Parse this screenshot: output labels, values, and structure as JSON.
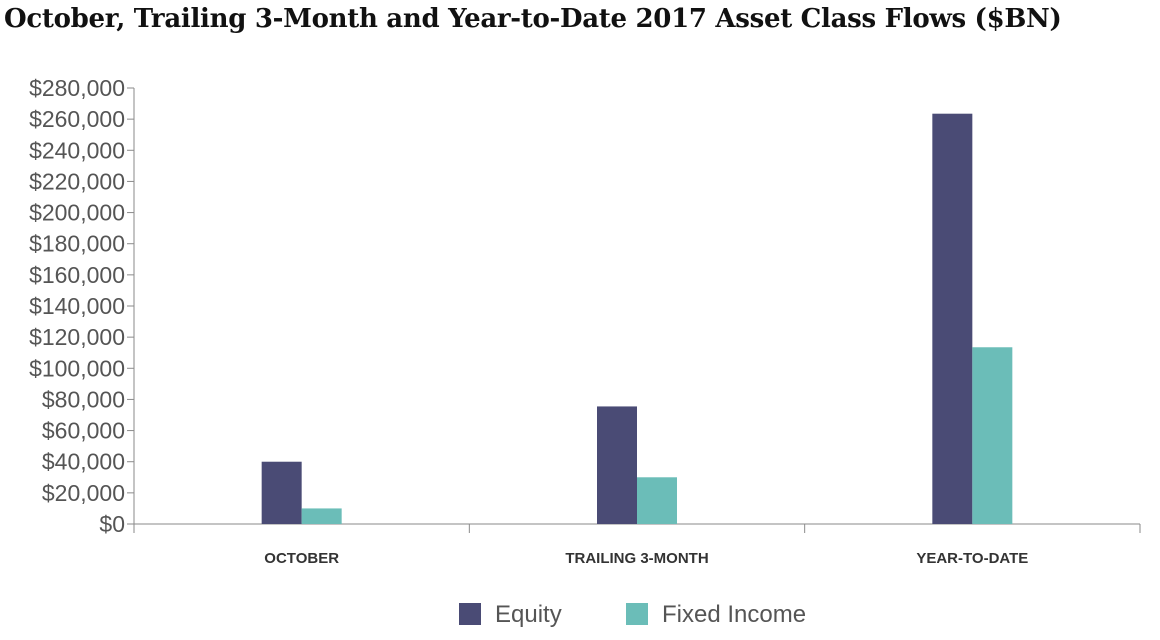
{
  "chart_data": {
    "type": "bar",
    "title": "October, Trailing 3-Month and Year-to-Date 2017 Asset Class Flows ($BN)",
    "categories": [
      "OCTOBER",
      "TRAILING 3-MONTH",
      "YEAR-TO-DATE"
    ],
    "series": [
      {
        "name": "Equity",
        "color": "#4a4b75",
        "values": [
          40000,
          75500,
          263500
        ]
      },
      {
        "name": "Fixed Income",
        "color": "#6bbdb8",
        "values": [
          10000,
          30000,
          113500
        ]
      }
    ],
    "ylim": [
      0,
      280000
    ],
    "yticks": [
      "$0",
      "$20,000",
      "$40,000",
      "$60,000",
      "$80,000",
      "$100,000",
      "$120,000",
      "$140,000",
      "$160,000",
      "$180,000",
      "$200,000",
      "$220,000",
      "$240,000",
      "$260,000",
      "$280,000"
    ],
    "ytick_step": 20000,
    "grid": false,
    "legend": "bottom-center"
  }
}
